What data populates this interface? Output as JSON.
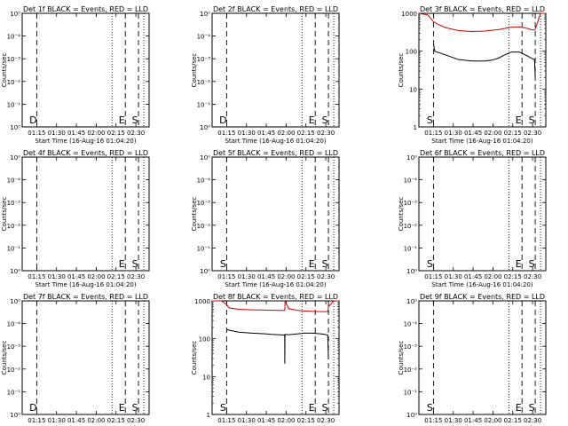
{
  "chart_data": {
    "type": "line",
    "layout": "3x3 grid",
    "ylabel": "Counts/sec",
    "xlabel": "Start Time (16-Aug-16 01:04:20)",
    "x_ticks": [
      "01:15",
      "01:30",
      "01:45",
      "02:00",
      "02:15",
      "02:30"
    ],
    "x_range_minutes_from_start": [
      0,
      96
    ],
    "series_colors": {
      "events": "#000000",
      "lld": "#d00000"
    },
    "panels": [
      {
        "title": "Det 1f BLACK = Events, RED = LLD",
        "y_scale": "linear",
        "y_ticks": [
          "10⁰",
          "10⁻⁴",
          "10⁻³",
          "10⁻²",
          "10⁻¹",
          "10⁰"
        ],
        "markers": [
          {
            "label": "D",
            "style": "dashed",
            "x": 11
          },
          {
            "label": "",
            "style": "dotted",
            "x": 68
          },
          {
            "label": "E",
            "style": "dashed",
            "x": 78
          },
          {
            "label": "S",
            "style": "dashed",
            "x": 88
          },
          {
            "label": "",
            "style": "dotted",
            "x": 92
          }
        ],
        "series": []
      },
      {
        "title": "Det 2f BLACK = Events, RED = LLD",
        "y_scale": "linear",
        "y_ticks": [
          "10⁰",
          "10⁻⁴",
          "10⁻³",
          "10⁻²",
          "10⁻¹",
          "10⁰"
        ],
        "markers": [
          {
            "label": "D",
            "style": "dashed",
            "x": 11
          },
          {
            "label": "",
            "style": "dotted",
            "x": 68
          },
          {
            "label": "E",
            "style": "dashed",
            "x": 78
          },
          {
            "label": "S",
            "style": "dashed",
            "x": 88
          },
          {
            "label": "",
            "style": "dotted",
            "x": 92
          }
        ],
        "series": []
      },
      {
        "title": "Det 3f BLACK = Events, RED = LLD",
        "y_scale": "log",
        "y_range": [
          1,
          1000
        ],
        "y_ticks": [
          "1000",
          "100",
          "10",
          "1"
        ],
        "markers": [
          {
            "label": "S",
            "style": "dashed",
            "x": 11
          },
          {
            "label": "",
            "style": "dotted",
            "x": 68
          },
          {
            "label": "E",
            "style": "dashed",
            "x": 78
          },
          {
            "label": "S",
            "style": "dashed",
            "x": 88
          },
          {
            "label": "",
            "style": "dotted",
            "x": 92
          }
        ],
        "series": [
          {
            "kind": "events",
            "x": [
              11,
              12,
              20,
              30,
              40,
              50,
              55,
              60,
              65,
              70,
              76,
              82,
              85,
              87.5,
              88
            ],
            "y": [
              160,
              100,
              80,
              60,
              55,
              55,
              58,
              65,
              80,
              95,
              95,
              75,
              65,
              60,
              20
            ]
          },
          {
            "kind": "lld",
            "x": [
              0,
              7,
              11,
              14,
              20,
              30,
              40,
              50,
              60,
              70,
              76,
              82,
              85,
              87.5,
              88,
              92,
              96
            ],
            "y": [
              1200,
              900,
              600,
              520,
              420,
              350,
              330,
              340,
              370,
              430,
              440,
              400,
              370,
              360,
              380,
              1200,
              1200
            ]
          }
        ]
      },
      {
        "title": "Det 4f BLACK = Events, RED = LLD",
        "y_scale": "linear",
        "y_ticks": [
          "10⁰",
          "10⁻⁴",
          "10⁻³",
          "10⁻²",
          "10⁻¹",
          "10⁰"
        ],
        "markers": [
          {
            "label": "",
            "style": "dashed",
            "x": 11
          },
          {
            "label": "",
            "style": "dotted",
            "x": 68
          },
          {
            "label": "E",
            "style": "dashed",
            "x": 78
          },
          {
            "label": "S",
            "style": "dashed",
            "x": 88
          },
          {
            "label": "",
            "style": "dotted",
            "x": 92
          }
        ],
        "series": []
      },
      {
        "title": "Det 5f BLACK = Events, RED = LLD",
        "y_scale": "linear",
        "y_ticks": [
          "10⁰",
          "10⁻⁴",
          "10⁻³",
          "10⁻²",
          "10⁻¹",
          "10⁰"
        ],
        "markers": [
          {
            "label": "S",
            "style": "dashed",
            "x": 11
          },
          {
            "label": "",
            "style": "dotted",
            "x": 68
          },
          {
            "label": "E",
            "style": "dashed",
            "x": 78
          },
          {
            "label": "S",
            "style": "dashed",
            "x": 88
          },
          {
            "label": "",
            "style": "dotted",
            "x": 92
          }
        ],
        "series": []
      },
      {
        "title": "Det 6f BLACK = Events, RED = LLD",
        "y_scale": "linear",
        "y_ticks": [
          "10⁰",
          "10⁻⁴",
          "10⁻³",
          "10⁻²",
          "10⁻¹",
          "10⁰"
        ],
        "markers": [
          {
            "label": "S",
            "style": "dashed",
            "x": 11
          },
          {
            "label": "",
            "style": "dotted",
            "x": 68
          },
          {
            "label": "E",
            "style": "dashed",
            "x": 78
          },
          {
            "label": "S",
            "style": "dashed",
            "x": 88
          },
          {
            "label": "",
            "style": "dotted",
            "x": 92
          }
        ],
        "series": []
      },
      {
        "title": "Det 7f BLACK = Events, RED = LLD",
        "y_scale": "linear",
        "y_ticks": [
          "10⁰",
          "10⁻⁴",
          "10⁻³",
          "10⁻²",
          "10⁻¹",
          "10⁰"
        ],
        "markers": [
          {
            "label": "D",
            "style": "dashed",
            "x": 11
          },
          {
            "label": "",
            "style": "dotted",
            "x": 68
          },
          {
            "label": "E",
            "style": "dashed",
            "x": 78
          },
          {
            "label": "S",
            "style": "dashed",
            "x": 88
          },
          {
            "label": "",
            "style": "dotted",
            "x": 92
          }
        ],
        "series": []
      },
      {
        "title": "Det 8f BLACK = Events, RED = LLD",
        "y_scale": "log",
        "y_range": [
          1,
          1000
        ],
        "y_ticks": [
          "1000",
          "100",
          "10",
          "1"
        ],
        "markers": [
          {
            "label": "S",
            "style": "dashed",
            "x": 11
          },
          {
            "label": "",
            "style": "dotted",
            "x": 68
          },
          {
            "label": "E",
            "style": "dashed",
            "x": 78
          },
          {
            "label": "S",
            "style": "dashed",
            "x": 88
          },
          {
            "label": "",
            "style": "dotted",
            "x": 92
          }
        ],
        "series": [
          {
            "kind": "events",
            "x": [
              11,
              12,
              20,
              30,
              40,
              45,
              54.9,
              55,
              55.1,
              58,
              65,
              70,
              76,
              82,
              85,
              87.5,
              88
            ],
            "y": [
              180,
              170,
              150,
              140,
              135,
              130,
              125,
              22,
              130,
              128,
              135,
              140,
              140,
              135,
              130,
              125,
              30
            ]
          },
          {
            "kind": "lld",
            "x": [
              0,
              7,
              11,
              13,
              20,
              30,
              40,
              50,
              55,
              55.2,
              58,
              65,
              70,
              76,
              82,
              85,
              87.5,
              88,
              92,
              96
            ],
            "y": [
              1100,
              1000,
              800,
              650,
              600,
              580,
              570,
              560,
              560,
              1000,
              620,
              560,
              540,
              530,
              520,
              520,
              520,
              700,
              1000,
              1000
            ]
          }
        ]
      },
      {
        "title": "Det 9f BLACK = Events, RED = LLD",
        "y_scale": "linear",
        "y_ticks": [
          "10⁰",
          "10⁻⁴",
          "10⁻³",
          "10⁻²",
          "10⁻¹",
          "10⁰"
        ],
        "markers": [
          {
            "label": "S",
            "style": "dashed",
            "x": 11
          },
          {
            "label": "",
            "style": "dotted",
            "x": 68
          },
          {
            "label": "E",
            "style": "dashed",
            "x": 78
          },
          {
            "label": "S",
            "style": "dashed",
            "x": 88
          },
          {
            "label": "",
            "style": "dotted",
            "x": 92
          }
        ],
        "series": []
      }
    ]
  }
}
